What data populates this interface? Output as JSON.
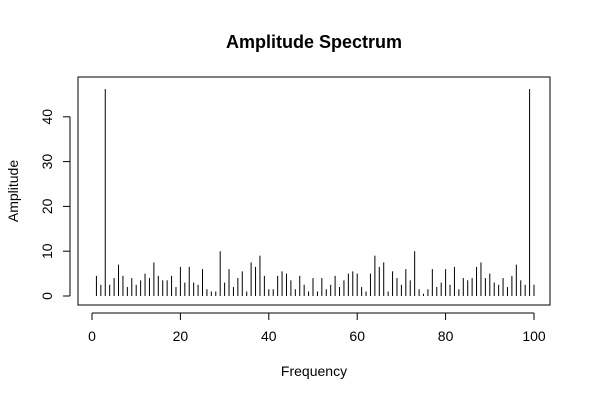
{
  "chart_data": {
    "type": "bar",
    "title": "Amplitude Spectrum",
    "xlabel": "Frequency",
    "ylabel": "Amplitude",
    "xlim": [
      1,
      100
    ],
    "ylim": [
      0,
      46.4
    ],
    "x_ticks": [
      0,
      20,
      40,
      60,
      80,
      100
    ],
    "y_ticks": [
      0,
      10,
      20,
      30,
      40
    ],
    "grid": false,
    "legend": "none",
    "series": [
      {
        "x": [
          1,
          2,
          3,
          4,
          5,
          6,
          7,
          8,
          9,
          10,
          11,
          12,
          13,
          14,
          15,
          16,
          17,
          18,
          19,
          20,
          21,
          22,
          23,
          24,
          25,
          26,
          27,
          28,
          29,
          30,
          31,
          32,
          33,
          34,
          35,
          36,
          37,
          38,
          39,
          40,
          41,
          42,
          43,
          44,
          45,
          46,
          47,
          48,
          49,
          50,
          51,
          52,
          53,
          54,
          55,
          56,
          57,
          58,
          59,
          60,
          61,
          62,
          63,
          64,
          65,
          66,
          67,
          68,
          69,
          70,
          71,
          72,
          73,
          74,
          75,
          76,
          77,
          78,
          79,
          80,
          81,
          82,
          83,
          84,
          85,
          86,
          87,
          88,
          89,
          90,
          91,
          92,
          93,
          94,
          95,
          96,
          97,
          98,
          99,
          100
        ],
        "values": [
          4.5,
          2.5,
          46.2,
          2.5,
          4.0,
          7.0,
          4.5,
          2.0,
          4.0,
          2.5,
          3.5,
          5.0,
          4.0,
          7.5,
          4.5,
          3.5,
          3.5,
          4.5,
          2.0,
          6.5,
          3.0,
          6.5,
          3.0,
          2.5,
          6.0,
          1.5,
          1.0,
          1.0,
          10.0,
          3.0,
          6.0,
          2.0,
          4.0,
          5.5,
          1.0,
          7.5,
          6.5,
          9.0,
          4.5,
          1.5,
          1.5,
          4.5,
          5.5,
          5.0,
          3.5,
          1.5,
          4.5,
          2.5,
          1.0,
          4.0,
          1.0,
          4.0,
          1.5,
          2.5,
          4.5,
          2.0,
          3.5,
          5.0,
          5.5,
          5.0,
          2.0,
          1.0,
          5.0,
          9.0,
          6.5,
          7.5,
          1.0,
          5.5,
          4.0,
          2.5,
          6.0,
          3.5,
          10.0,
          1.5,
          0.5,
          1.5,
          6.0,
          2.0,
          3.0,
          6.0,
          2.5,
          6.5,
          1.5,
          4.0,
          3.5,
          4.0,
          6.5,
          7.5,
          4.0,
          5.0,
          3.0,
          2.5,
          4.0,
          2.0,
          4.5,
          7.0,
          3.5,
          2.5,
          46.2,
          2.5
        ]
      }
    ]
  }
}
